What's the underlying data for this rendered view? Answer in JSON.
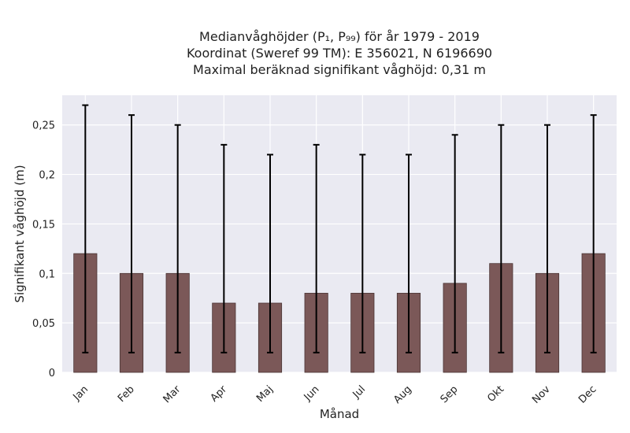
{
  "chart_data": {
    "type": "bar",
    "title_lines": [
      "Medianvåghöjder (P₁, P₉₉) för år 1979 - 2019",
      "Koordinat (Sweref 99 TM): E 356021, N 6196690",
      "Maximal beräknad signifikant våghöjd: 0,31 m"
    ],
    "xlabel": "Månad",
    "ylabel": "Signifikant våghöjd (m)",
    "categories": [
      "Jan",
      "Feb",
      "Mar",
      "Apr",
      "Maj",
      "Jun",
      "Jul",
      "Aug",
      "Sep",
      "Okt",
      "Nov",
      "Dec"
    ],
    "values": [
      0.12,
      0.1,
      0.1,
      0.07,
      0.07,
      0.08,
      0.08,
      0.08,
      0.09,
      0.11,
      0.1,
      0.12
    ],
    "error_low": [
      0.02,
      0.02,
      0.02,
      0.02,
      0.02,
      0.02,
      0.02,
      0.02,
      0.02,
      0.02,
      0.02,
      0.02
    ],
    "error_high": [
      0.27,
      0.26,
      0.25,
      0.23,
      0.22,
      0.23,
      0.22,
      0.22,
      0.24,
      0.25,
      0.25,
      0.26
    ],
    "ylim": [
      0,
      0.28
    ],
    "yticks": [
      0,
      0.05,
      0.1,
      0.15,
      0.2,
      0.25
    ],
    "ytick_labels": [
      "0",
      "0,05",
      "0,1",
      "0,15",
      "0,2",
      "0,25"
    ],
    "grid": true,
    "bar_color": "#7b5858",
    "bar_edge_color": "#4a3434",
    "error_color": "#000000",
    "plot_background": "#eaeaf2",
    "grid_color": "#ffffff"
  }
}
